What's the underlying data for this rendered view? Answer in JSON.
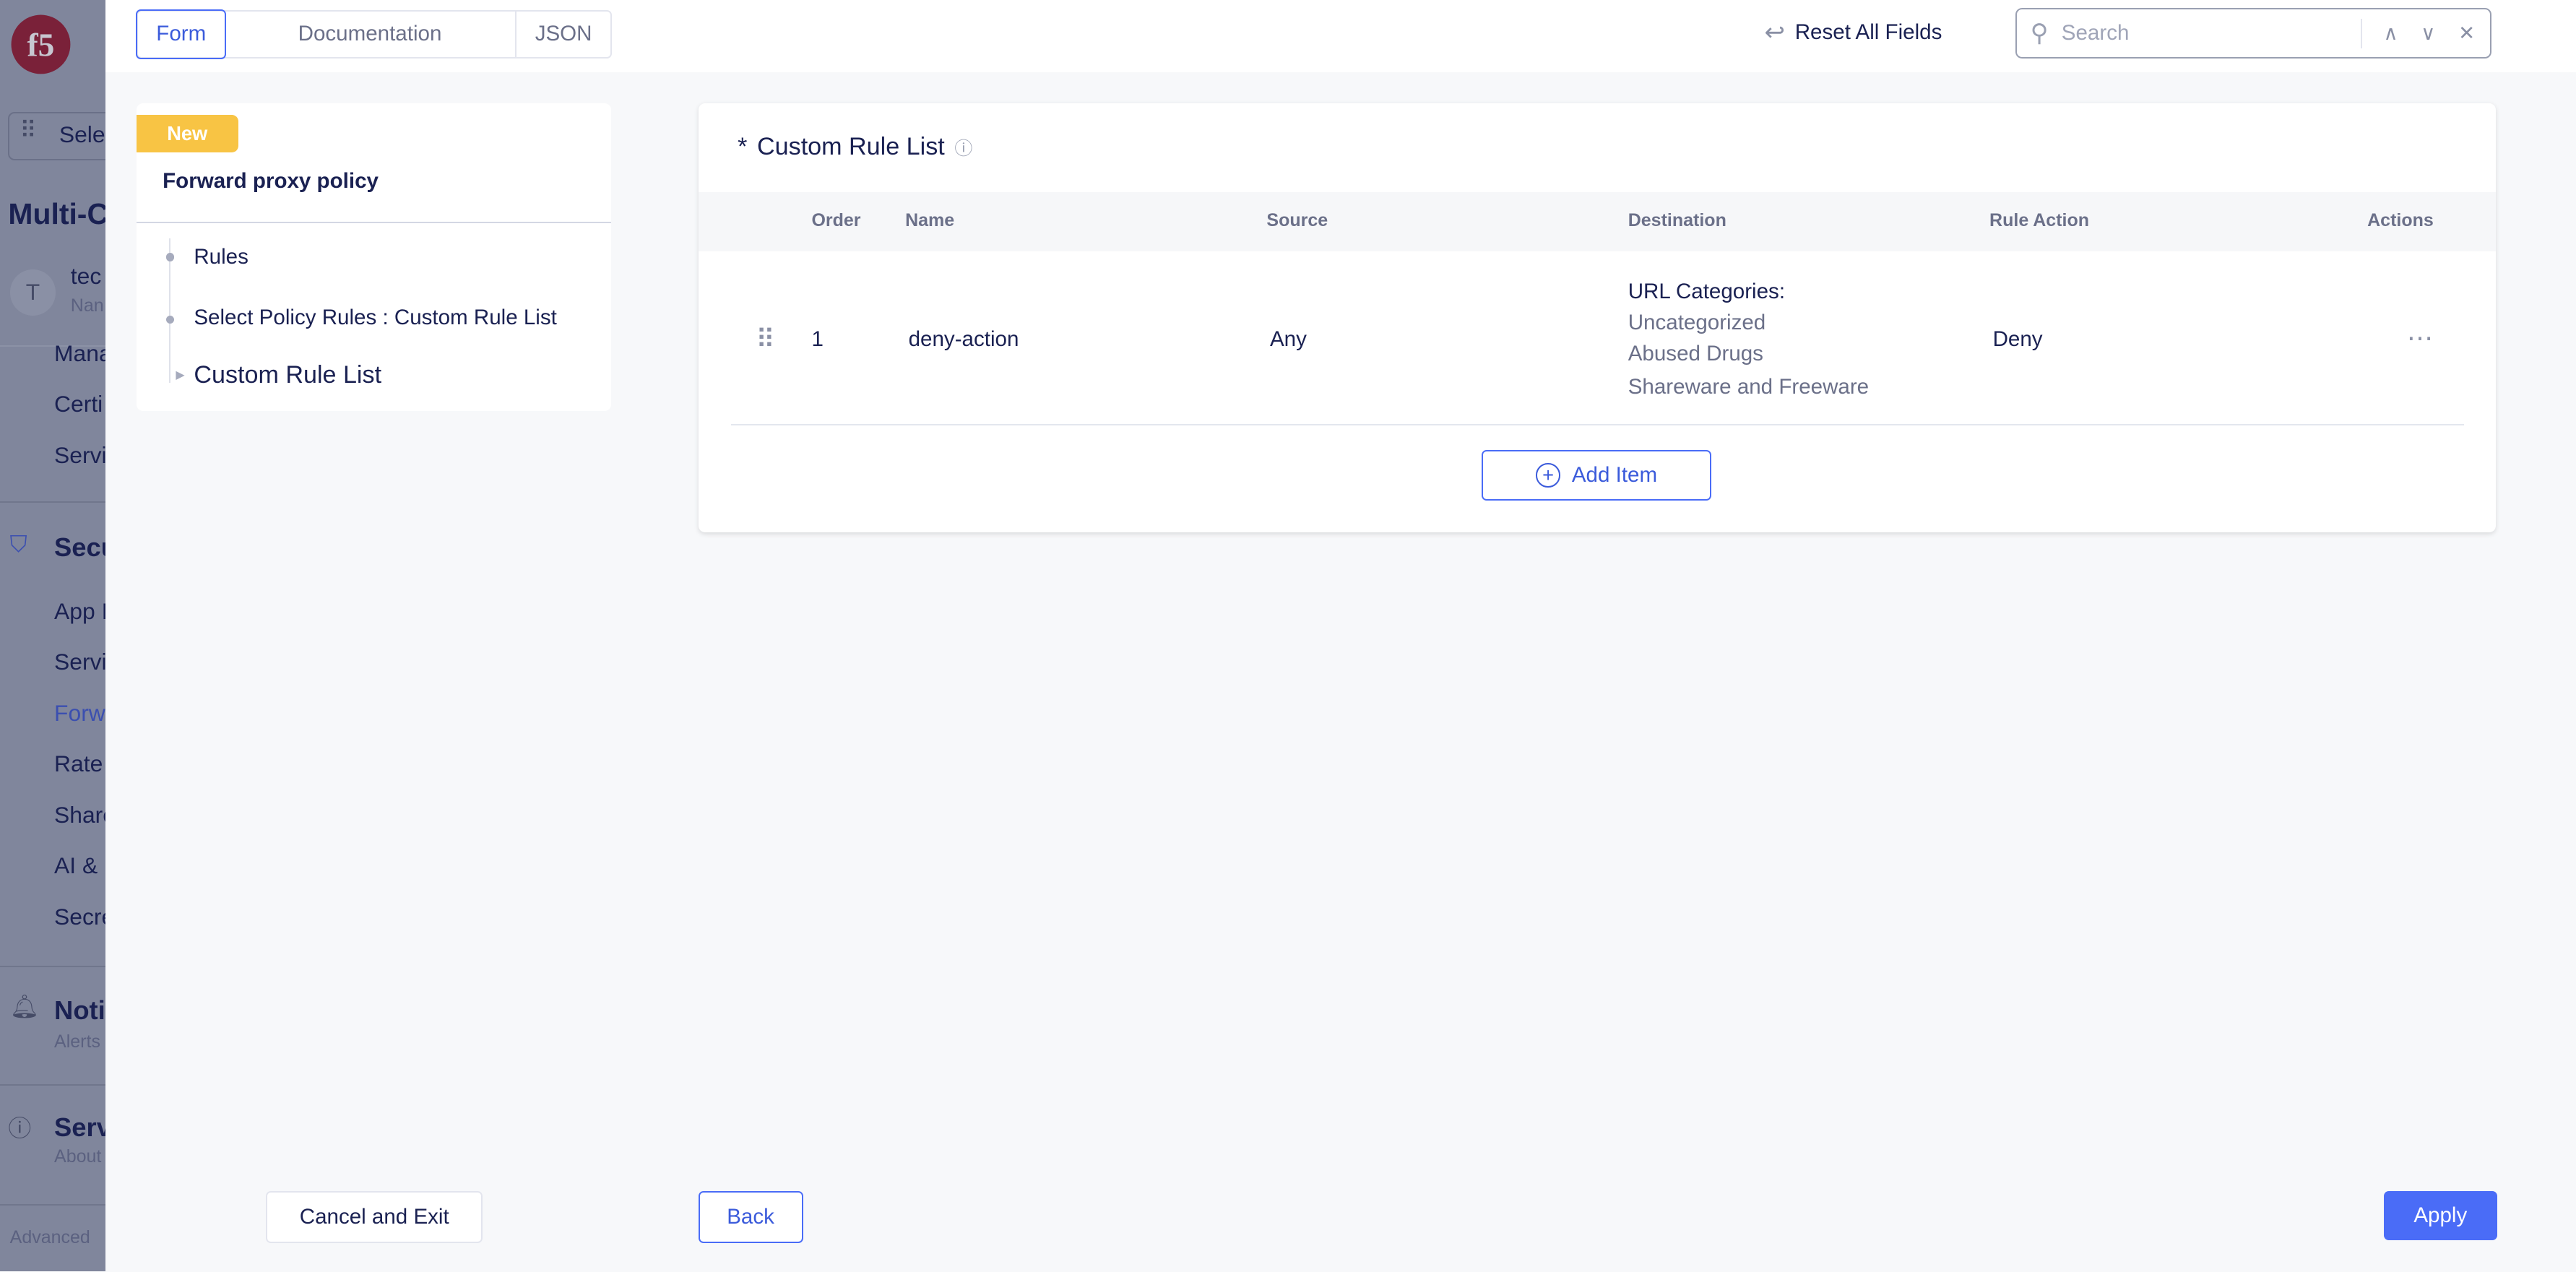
{
  "sidebar": {
    "logo": "f5",
    "select_label": "Sele",
    "title": "Multi-C",
    "user_initial": "T",
    "user_name": "tec",
    "user_sub": "Nan",
    "items_top": [
      "Mana",
      "Certi",
      "Servi"
    ],
    "security_label": "Secu",
    "security_items": [
      "App I",
      "Servi",
      "Forw",
      "Rate",
      "Share",
      "AI & I",
      "Secre"
    ],
    "notifications_label": "Noti",
    "notifications_sub": "Alerts",
    "service_label": "Serv",
    "service_sub": "About",
    "advanced_label": "Advanced"
  },
  "tabs": [
    {
      "label": "Form",
      "active": true
    },
    {
      "label": "Documentation"
    },
    {
      "label": "JSON"
    }
  ],
  "toolbar": {
    "reset_label": "Reset All Fields",
    "search_placeholder": "Search",
    "search_value": ""
  },
  "nav": {
    "badge": "New",
    "title": "Forward proxy policy",
    "steps": [
      "Rules",
      "Select Policy Rules : Custom Rule List",
      "Custom Rule List"
    ]
  },
  "card": {
    "required_mark": "*",
    "title": "Custom Rule List",
    "columns": [
      "Order",
      "Name",
      "Source",
      "Destination",
      "Rule Action",
      "Actions"
    ],
    "rows": [
      {
        "order": "1",
        "name": "deny-action",
        "source": "Any",
        "destination_heading": "URL Categories:",
        "destination_items": [
          "Uncategorized",
          "Abused Drugs",
          "Shareware and Freeware"
        ],
        "rule_action": "Deny"
      }
    ],
    "add_label": "Add Item"
  },
  "footer": {
    "cancel": "Cancel and Exit",
    "back": "Back",
    "apply": "Apply"
  },
  "colors": {
    "accent": "#4a6cf7",
    "badge": "#f8c444",
    "overlay": "#80869c",
    "brand": "#7a2139"
  }
}
